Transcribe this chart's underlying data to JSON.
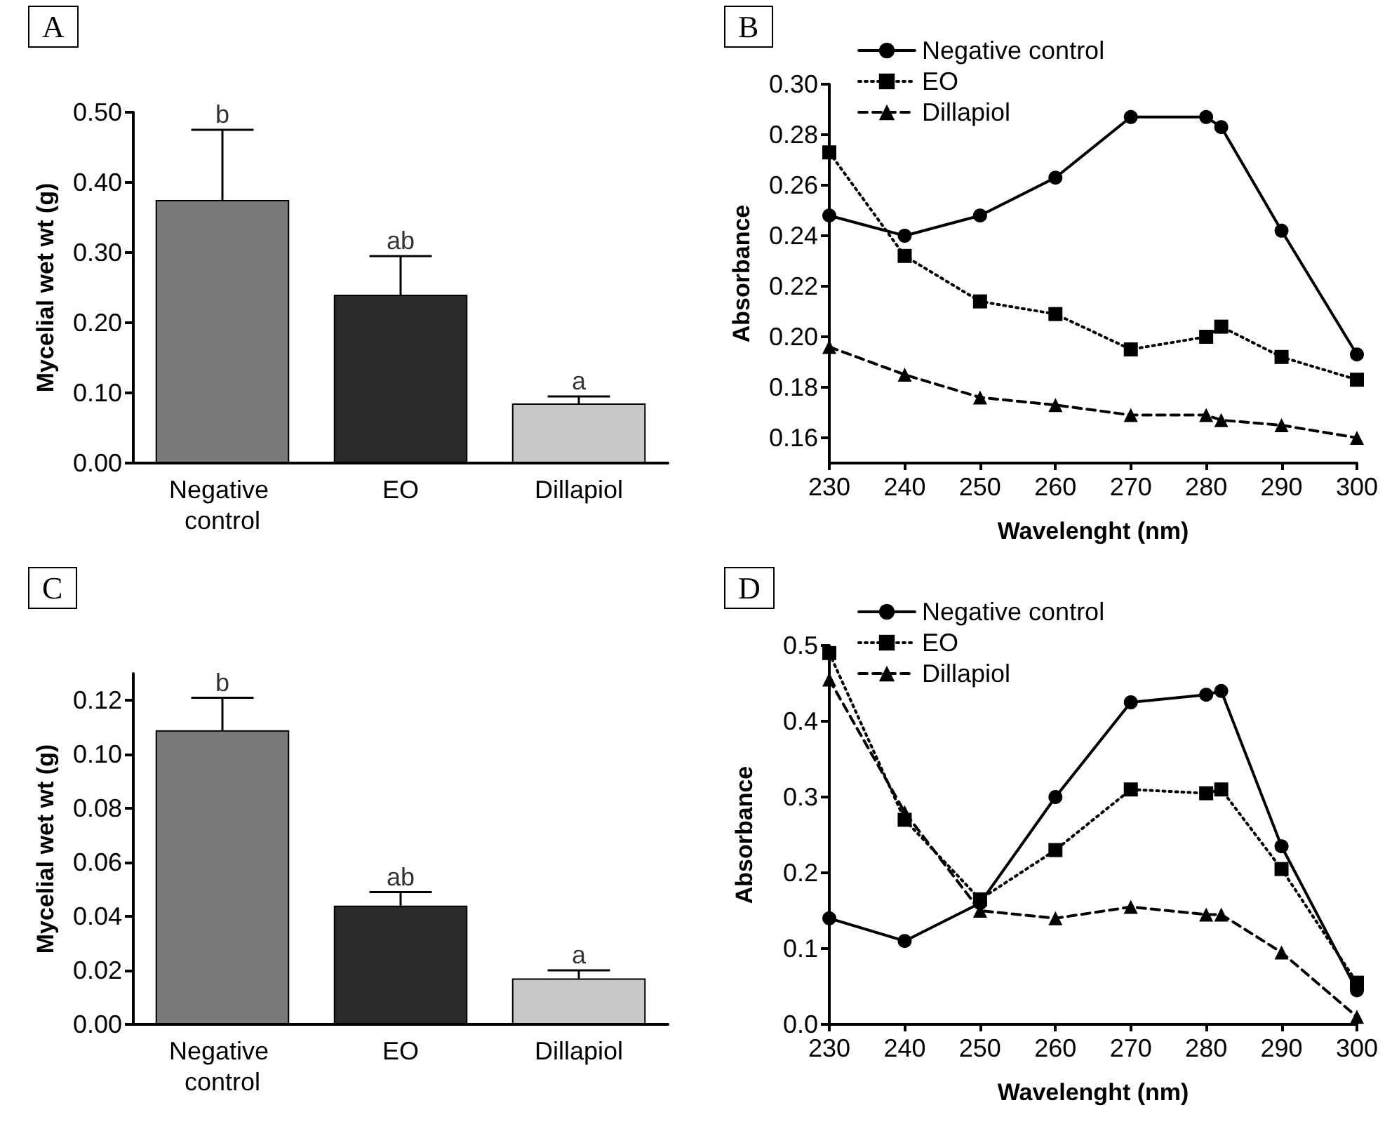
{
  "chart_data": [
    {
      "type": "bar",
      "title": "A",
      "ylabel": "Mycelial wet wt (g)",
      "categories": [
        "Negative control",
        "EO",
        "Dillapiol"
      ],
      "values": [
        0.375,
        0.24,
        0.085
      ],
      "errors": [
        0.1,
        0.055,
        0.01
      ],
      "colors": [
        "#7a7a7a",
        "#2a2a2a",
        "#c8c8c8"
      ],
      "ylim": [
        0,
        0.5
      ],
      "yticks": [
        {
          "value": 0,
          "label": "0.00"
        },
        {
          "value": 0.1,
          "label": "0.10"
        },
        {
          "value": 0.2,
          "label": "0.20"
        },
        {
          "value": 0.3,
          "label": "0.30"
        },
        {
          "value": 0.4,
          "label": "0.40"
        },
        {
          "value": 0.5,
          "label": "0.50"
        }
      ],
      "grid": false,
      "annotations": [
        {
          "text": "b",
          "x": "Negative control",
          "y": 0.475
        },
        {
          "text": "ab",
          "x": "EO",
          "y": 0.295
        },
        {
          "text": "a",
          "x": "Dillapiol",
          "y": 0.095
        }
      ]
    },
    {
      "type": "line",
      "title": "B",
      "xlabel": "Wavelenght (nm)",
      "ylabel": "Absorbance",
      "x": [
        230,
        240,
        250,
        260,
        270,
        280,
        282,
        290,
        300
      ],
      "xlim": [
        230,
        300
      ],
      "xticks": [
        230,
        240,
        250,
        260,
        270,
        280,
        290,
        300
      ],
      "ylim": [
        0.15,
        0.3
      ],
      "yticks": [
        0.16,
        0.18,
        {
          "value": 0.2,
          "label": "0.20"
        },
        0.22,
        0.24,
        0.26,
        0.28,
        {
          "value": 0.3,
          "label": "0.30"
        }
      ],
      "grid": false,
      "legend": "top left",
      "series": [
        {
          "name": "Negative control",
          "color": "#000000",
          "marker": "circle",
          "line_style": "solid",
          "values": [
            0.248,
            0.24,
            0.248,
            0.263,
            0.287,
            0.287,
            0.283,
            0.242,
            0.193
          ]
        },
        {
          "name": "EO",
          "color": "#000000",
          "marker": "square",
          "line_style": "dotted",
          "values": [
            0.273,
            0.232,
            0.214,
            0.209,
            0.195,
            0.2,
            0.204,
            0.192,
            0.183
          ]
        },
        {
          "name": "Dillapiol",
          "color": "#000000",
          "marker": "triangle",
          "line_style": "dashed",
          "values": [
            0.196,
            0.185,
            0.176,
            0.173,
            0.169,
            0.169,
            0.167,
            0.165,
            0.16
          ]
        }
      ]
    },
    {
      "type": "bar",
      "title": "C",
      "ylabel": "Mycelial wet wt (g)",
      "categories": [
        "Negative control",
        "EO",
        "Dillapiol"
      ],
      "values": [
        0.109,
        0.044,
        0.017
      ],
      "errors": [
        0.012,
        0.005,
        0.003
      ],
      "colors": [
        "#7a7a7a",
        "#2a2a2a",
        "#c8c8c8"
      ],
      "ylim": [
        0,
        0.13
      ],
      "yticks": [
        {
          "value": 0,
          "label": "0.00"
        },
        0.02,
        0.04,
        0.06,
        0.08,
        {
          "value": 0.1,
          "label": "0.10"
        },
        0.12
      ],
      "grid": false,
      "annotations": [
        {
          "text": "b",
          "x": "Negative control",
          "y": 0.121
        },
        {
          "text": "ab",
          "x": "EO",
          "y": 0.049
        },
        {
          "text": "a",
          "x": "Dillapiol",
          "y": 0.02
        }
      ]
    },
    {
      "type": "line",
      "title": "D",
      "xlabel": "Wavelenght (nm)",
      "ylabel": "Absorbance",
      "x": [
        230,
        240,
        250,
        260,
        270,
        280,
        282,
        290,
        300
      ],
      "xlim": [
        230,
        300
      ],
      "xticks": [
        230,
        240,
        250,
        260,
        270,
        280,
        290,
        300
      ],
      "ylim": [
        0,
        0.5
      ],
      "yticks": [
        {
          "value": 0,
          "label": "0.0"
        },
        0.1,
        0.2,
        0.3,
        0.4,
        0.5
      ],
      "grid": false,
      "legend": "top left",
      "series": [
        {
          "name": "Negative control",
          "color": "#000000",
          "marker": "circle",
          "line_style": "solid",
          "values": [
            0.14,
            0.11,
            0.16,
            0.3,
            0.425,
            0.435,
            0.44,
            0.235,
            0.045
          ]
        },
        {
          "name": "EO",
          "color": "#000000",
          "marker": "square",
          "line_style": "dotted",
          "values": [
            0.49,
            0.27,
            0.165,
            0.23,
            0.31,
            0.305,
            0.31,
            0.205,
            0.055
          ]
        },
        {
          "name": "Dillapiol",
          "color": "#000000",
          "marker": "triangle",
          "line_style": "dashed",
          "values": [
            0.455,
            0.28,
            0.15,
            0.14,
            0.155,
            0.145,
            0.145,
            0.095,
            0.01
          ]
        }
      ]
    }
  ]
}
